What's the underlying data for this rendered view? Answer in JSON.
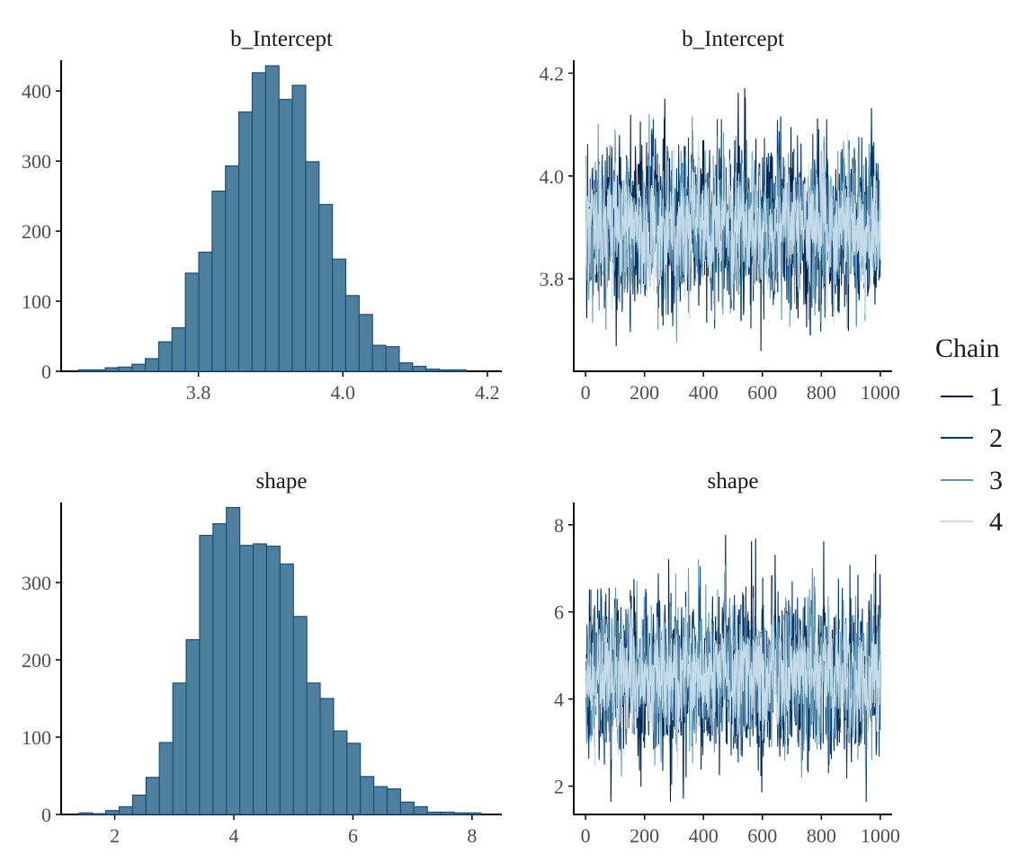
{
  "legend": {
    "title": "Chain",
    "placement": "right",
    "items": [
      {
        "label": "1",
        "color": "#011f4b"
      },
      {
        "label": "2",
        "color": "#03396c"
      },
      {
        "label": "3",
        "color": "#6497b1"
      },
      {
        "label": "4",
        "color": "#c6dbe9"
      }
    ]
  },
  "colors": {
    "hist_fill": "#4f7f9f",
    "hist_stroke": "#1b4f7a",
    "axis": "#000000"
  },
  "chart_data": [
    {
      "type": "bar",
      "subtype": "histogram",
      "title": "b_Intercept",
      "xlabel": "",
      "ylabel": "",
      "bin_start": 3.634,
      "bin_width": 0.0185,
      "counts": [
        2,
        2,
        5,
        6,
        10,
        18,
        42,
        62,
        140,
        170,
        257,
        293,
        370,
        426,
        436,
        388,
        408,
        299,
        238,
        160,
        108,
        81,
        37,
        35,
        12,
        7,
        3,
        2,
        2
      ],
      "xlim": [
        3.61,
        4.22
      ],
      "ylim": [
        0,
        440
      ],
      "xticks": [
        3.8,
        4.0,
        4.2
      ],
      "xtick_labels": [
        "3.8",
        "4.0",
        "4.2"
      ],
      "yticks": [
        0,
        100,
        200,
        300,
        400
      ],
      "ytick_labels": [
        "0",
        "100",
        "200",
        "300",
        "400"
      ],
      "grid": false
    },
    {
      "type": "line",
      "subtype": "trace",
      "title": "b_Intercept",
      "xlabel": "",
      "ylabel": "",
      "x": {
        "start": 1,
        "end": 1000
      },
      "series": [
        {
          "name": "1",
          "mean": 3.9,
          "sd": 0.075,
          "min": 3.66,
          "max": 4.17,
          "seed": 11
        },
        {
          "name": "2",
          "mean": 3.9,
          "sd": 0.072,
          "min": 3.64,
          "max": 4.11,
          "seed": 23
        },
        {
          "name": "3",
          "mean": 3.9,
          "sd": 0.07,
          "min": 3.67,
          "max": 4.12,
          "seed": 37
        },
        {
          "name": "4",
          "mean": 3.9,
          "sd": 0.055,
          "min": 3.67,
          "max": 4.19,
          "seed": 53
        }
      ],
      "xlim": [
        -40,
        1040
      ],
      "ylim": [
        3.62,
        4.22
      ],
      "xticks": [
        0,
        200,
        400,
        600,
        800,
        1000
      ],
      "xtick_labels": [
        "0",
        "200",
        "400",
        "600",
        "800",
        "1000"
      ],
      "yticks": [
        3.8,
        4.0,
        4.2
      ],
      "ytick_labels": [
        "3.8",
        "4.0",
        "4.2"
      ],
      "grid": false
    },
    {
      "type": "bar",
      "subtype": "histogram",
      "title": "shape",
      "xlabel": "",
      "ylabel": "",
      "bin_start": 1.4,
      "bin_width": 0.225,
      "counts": [
        2,
        1,
        5,
        10,
        25,
        48,
        93,
        170,
        226,
        361,
        376,
        397,
        348,
        350,
        347,
        324,
        256,
        170,
        150,
        108,
        92,
        49,
        36,
        33,
        16,
        10,
        3,
        3,
        2,
        2
      ],
      "xlim": [
        1.1,
        8.5
      ],
      "ylim": [
        0,
        400
      ],
      "xticks": [
        2,
        4,
        6,
        8
      ],
      "xtick_labels": [
        "2",
        "4",
        "6",
        "8"
      ],
      "yticks": [
        0,
        100,
        200,
        300
      ],
      "ytick_labels": [
        "0",
        "100",
        "200",
        "300"
      ],
      "grid": false
    },
    {
      "type": "line",
      "subtype": "trace",
      "title": "shape",
      "xlabel": "",
      "ylabel": "",
      "x": {
        "start": 1,
        "end": 1000
      },
      "series": [
        {
          "name": "1",
          "mean": 4.5,
          "sd": 0.95,
          "min": 1.65,
          "max": 8.2,
          "seed": 71
        },
        {
          "name": "2",
          "mean": 4.5,
          "sd": 0.9,
          "min": 2.0,
          "max": 7.6,
          "seed": 83
        },
        {
          "name": "3",
          "mean": 4.5,
          "sd": 0.85,
          "min": 2.2,
          "max": 7.2,
          "seed": 97
        },
        {
          "name": "4",
          "mean": 4.5,
          "sd": 0.65,
          "min": 2.4,
          "max": 6.8,
          "seed": 113
        }
      ],
      "xlim": [
        -40,
        1040
      ],
      "ylim": [
        1.35,
        8.45
      ],
      "xticks": [
        0,
        200,
        400,
        600,
        800,
        1000
      ],
      "xtick_labels": [
        "0",
        "200",
        "400",
        "600",
        "800",
        "1000"
      ],
      "yticks": [
        2,
        4,
        6,
        8
      ],
      "ytick_labels": [
        "2",
        "4",
        "6",
        "8"
      ],
      "grid": false
    }
  ]
}
